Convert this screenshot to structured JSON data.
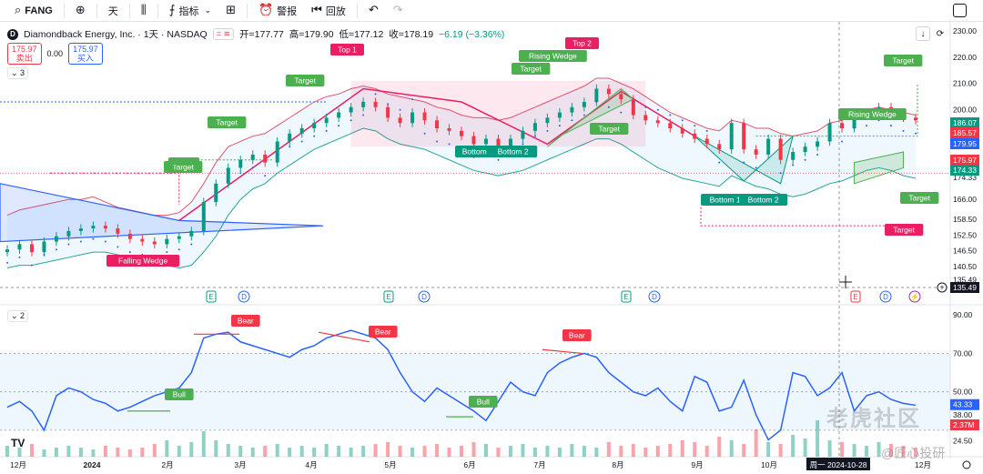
{
  "toolbar": {
    "symbol": "FANG",
    "interval": "天",
    "indicators": "指标",
    "alert": "警报",
    "replay": "回放"
  },
  "legend": {
    "logo_letter": "D",
    "title": "Diamondback Energy, Inc. · 1天 · NASDAQ",
    "open": "开=177.77",
    "high": "高=179.90",
    "low": "低=177.12",
    "close": "收=178.19",
    "change": "−6.19 (−3.36%)",
    "sell_price": "175.97",
    "sell_label": "卖出",
    "spread": "0.00",
    "buy_price": "175.97",
    "buy_label": "买入",
    "pane1_tag": "3",
    "pane2_tag": "2"
  },
  "watermark": {
    "main": "老虎社区",
    "sub": "@匠心投研"
  },
  "tv_logo": "TV",
  "colors": {
    "up": "#089981",
    "down": "#f23645",
    "rsi": "#2962ff",
    "bb_upper": "#e0556b",
    "bb_lower": "#26a69a",
    "pattern_red": "#e91e63",
    "pattern_green": "#4caf50",
    "pattern_blue": "#2962ff"
  },
  "chart_data": [
    {
      "type": "candlestick",
      "title": "Diamondback Energy, Inc. · 1天 · NASDAQ",
      "ylim": [
        135,
        232
      ],
      "y_ticks": [
        230.0,
        220.0,
        210.0,
        200.0,
        190.0,
        182.0,
        174.33,
        166.0,
        158.5,
        152.5,
        146.5,
        140.5,
        135.49
      ],
      "y_tick_labels": [
        "230.00",
        "220.00",
        "210.00",
        "200.00",
        "190.00",
        "182.00",
        "174.33",
        "166.00",
        "158.50",
        "152.50",
        "146.50",
        "140.50",
        "135.49"
      ],
      "price_tags": [
        {
          "label": "186.07",
          "color": "#089981"
        },
        {
          "label": "185.57",
          "color": "#f23645"
        },
        {
          "label": "179.95",
          "color": "#2962ff"
        },
        {
          "label": "175.97",
          "color": "#f23645"
        },
        {
          "label": "174.33",
          "color": "#089981"
        },
        {
          "label": "135.49",
          "color": "#131722"
        }
      ],
      "x_labels": [
        "12月",
        "2024",
        "2月",
        "3月",
        "4月",
        "5月",
        "6月",
        "7月",
        "8月",
        "9月",
        "10月",
        "11月",
        "12月"
      ],
      "crosshair_label": "周一 2024-10-28",
      "close_series": [
        147,
        149,
        146,
        150,
        152,
        154,
        155,
        156,
        155,
        153,
        151,
        150,
        149,
        151,
        152,
        154,
        165,
        172,
        178,
        181,
        183,
        180,
        188,
        191,
        193,
        195,
        197,
        199,
        201,
        203,
        201,
        197,
        195,
        199,
        196,
        193,
        192,
        190,
        187,
        189,
        186,
        189,
        192,
        195,
        197,
        199,
        201,
        203,
        208,
        206,
        204,
        198,
        196,
        195,
        193,
        191,
        189,
        187,
        185,
        195,
        185,
        183,
        189,
        181,
        184,
        186,
        188,
        195,
        193,
        198,
        199,
        201,
        199,
        197,
        196
      ],
      "bb_upper": [
        160,
        162,
        163,
        164,
        165,
        166,
        166,
        167,
        165,
        163,
        162,
        161,
        160,
        160,
        161,
        165,
        172,
        180,
        186,
        188,
        190,
        191,
        194,
        197,
        200,
        203,
        205,
        206,
        208,
        209,
        208,
        206,
        205,
        204,
        203,
        201,
        200,
        198,
        197,
        197,
        196,
        197,
        199,
        201,
        203,
        205,
        207,
        209,
        212,
        212,
        210,
        208,
        205,
        202,
        199,
        197,
        195,
        193,
        192,
        196,
        195,
        193,
        193,
        191,
        190,
        191,
        192,
        195,
        196,
        198,
        200,
        201,
        200,
        199,
        198
      ],
      "bb_lower": [
        140,
        141,
        141,
        142,
        143,
        144,
        145,
        146,
        146,
        145,
        144,
        143,
        142,
        141,
        140,
        141,
        146,
        152,
        160,
        166,
        170,
        172,
        176,
        179,
        182,
        185,
        187,
        189,
        191,
        193,
        192,
        189,
        187,
        186,
        185,
        183,
        181,
        179,
        177,
        176,
        175,
        176,
        177,
        179,
        181,
        183,
        185,
        187,
        189,
        189,
        187,
        184,
        181,
        178,
        176,
        174,
        173,
        172,
        171,
        175,
        173,
        171,
        170,
        168,
        167,
        168,
        170,
        172,
        173,
        175,
        177,
        178,
        177,
        175,
        174
      ],
      "patterns": [
        {
          "label": "Falling Wedge",
          "color": "#e91e63"
        },
        {
          "label": "Target",
          "color": "#4caf50"
        },
        {
          "label": "Target",
          "color": "#4caf50"
        },
        {
          "label": "Target",
          "color": "#4caf50"
        },
        {
          "label": "Top 1",
          "color": "#e91e63"
        },
        {
          "label": "Top 2",
          "color": "#e91e63"
        },
        {
          "label": "Bottom",
          "color": "#089981"
        },
        {
          "label": "Bottom 2",
          "color": "#089981"
        },
        {
          "label": "Rising Wedge",
          "color": "#4caf50"
        },
        {
          "label": "Target",
          "color": "#4caf50"
        },
        {
          "label": "Target",
          "color": "#4caf50"
        },
        {
          "label": "Bottom 1",
          "color": "#089981"
        },
        {
          "label": "Bottom 2",
          "color": "#089981"
        },
        {
          "label": "Rising Wedge",
          "color": "#4caf50"
        },
        {
          "label": "Target",
          "color": "#4caf50"
        },
        {
          "label": "Target",
          "color": "#4caf50"
        },
        {
          "label": "Target",
          "color": "#e91e63"
        }
      ],
      "event_markers": [
        "E",
        "D",
        "E",
        "D",
        "E",
        "D",
        "E",
        "D",
        "⚡"
      ]
    },
    {
      "type": "line",
      "name": "RSI",
      "ylim": [
        20,
        92
      ],
      "y_ticks": [
        90.0,
        70.0,
        50.0,
        38.0,
        24.5
      ],
      "y_tick_labels": [
        "90.00",
        "70.00",
        "50.00",
        "38.00",
        "24.50"
      ],
      "band": [
        30,
        70
      ],
      "current_label": "43.33",
      "volume_tag": "2.37M",
      "values": [
        42,
        45,
        40,
        30,
        48,
        52,
        50,
        46,
        44,
        40,
        42,
        45,
        48,
        50,
        52,
        60,
        78,
        80,
        81,
        76,
        74,
        72,
        70,
        68,
        72,
        74,
        78,
        80,
        82,
        80,
        78,
        72,
        60,
        50,
        45,
        52,
        48,
        44,
        40,
        35,
        45,
        55,
        50,
        48,
        60,
        65,
        68,
        70,
        68,
        60,
        55,
        50,
        48,
        52,
        45,
        40,
        58,
        55,
        40,
        42,
        56,
        38,
        25,
        30,
        60,
        58,
        48,
        52,
        60,
        40,
        48,
        50,
        46,
        44,
        43
      ],
      "signals": [
        {
          "label": "Bear",
          "color": "#f23645"
        },
        {
          "label": "Bear",
          "color": "#f23645"
        },
        {
          "label": "Bear",
          "color": "#f23645"
        },
        {
          "label": "Bull",
          "color": "#4caf50"
        },
        {
          "label": "Bull",
          "color": "#4caf50"
        }
      ],
      "volume": [
        0.6,
        0.5,
        0.7,
        0.4,
        0.5,
        0.6,
        0.5,
        0.4,
        0.6,
        0.5,
        0.4,
        0.5,
        0.7,
        0.9,
        0.6,
        0.8,
        1.4,
        0.9,
        0.7,
        0.6,
        0.5,
        0.6,
        0.7,
        0.5,
        0.6,
        0.5,
        0.7,
        0.6,
        0.5,
        0.6,
        0.7,
        0.8,
        0.6,
        0.5,
        0.6,
        0.7,
        0.5,
        0.6,
        0.8,
        0.7,
        0.5,
        0.6,
        0.7,
        0.5,
        0.6,
        0.5,
        0.7,
        0.6,
        0.5,
        0.8,
        0.6,
        0.7,
        0.5,
        0.6,
        0.7,
        0.9,
        0.8,
        0.6,
        1.1,
        0.9,
        0.7,
        1.5,
        0.8,
        0.7,
        1.2,
        1.0,
        2.0,
        0.9,
        0.8,
        0.7,
        0.6,
        0.8,
        0.7,
        0.6,
        0.5
      ]
    }
  ]
}
